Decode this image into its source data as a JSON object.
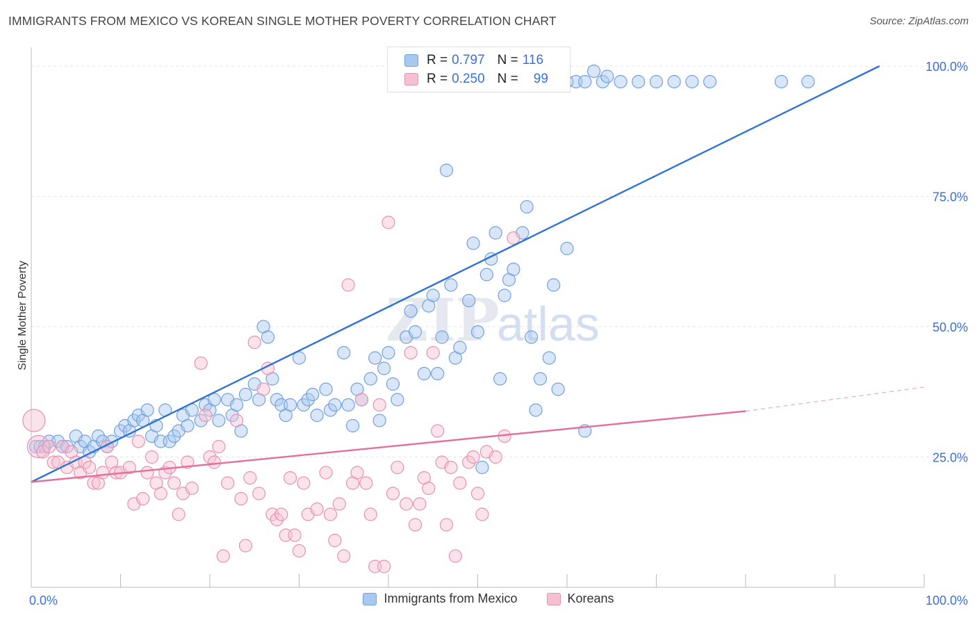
{
  "title": "IMMIGRANTS FROM MEXICO VS KOREAN SINGLE MOTHER POVERTY CORRELATION CHART",
  "source": "Source: ZipAtlas.com",
  "watermark": {
    "zip": "ZIP",
    "atlas": "atlas"
  },
  "legend_top": {
    "rows": [
      {
        "r_label": "R =",
        "r_value": "0.797",
        "n_label": "N =",
        "n_value": "116",
        "color": "#a9c8f0",
        "border": "#6fa0e0"
      },
      {
        "r_label": "R =",
        "r_value": "0.250",
        "n_label": "N =",
        "n_value": "99",
        "color": "#f7c0d2",
        "border": "#e890ae"
      }
    ]
  },
  "chart_data": {
    "type": "scatter",
    "title": "IMMIGRANTS FROM MEXICO VS KOREAN SINGLE MOTHER POVERTY CORRELATION CHART",
    "xlabel": "",
    "ylabel": "Single Mother Poverty",
    "xlim": [
      0,
      100
    ],
    "ylim": [
      0,
      100
    ],
    "x_tick_labels": [
      "0.0%",
      "100.0%"
    ],
    "y_tick_labels": [
      "25.0%",
      "50.0%",
      "75.0%",
      "100.0%"
    ],
    "y_ticks": [
      25,
      50,
      75,
      100
    ],
    "grid": true,
    "legend_position": "bottom",
    "series": [
      {
        "name": "Immigrants from Mexico",
        "color": "#6fa0e0",
        "fill": "#a9c8f0",
        "trend": {
          "x": [
            0,
            95
          ],
          "y": [
            20.2,
            100
          ]
        },
        "trend_color": "#2f72d6",
        "points": [
          [
            0.5,
            27
          ],
          [
            1,
            27
          ],
          [
            1.5,
            27
          ],
          [
            2,
            28
          ],
          [
            3,
            28
          ],
          [
            3.5,
            27
          ],
          [
            4,
            27
          ],
          [
            5,
            29
          ],
          [
            5.5,
            27
          ],
          [
            6,
            28
          ],
          [
            6.5,
            26
          ],
          [
            7,
            27
          ],
          [
            7.5,
            29
          ],
          [
            8,
            28
          ],
          [
            8.5,
            27
          ],
          [
            9,
            28
          ],
          [
            10,
            30
          ],
          [
            10.5,
            31
          ],
          [
            11,
            30
          ],
          [
            11.5,
            32
          ],
          [
            12,
            33
          ],
          [
            12.5,
            32
          ],
          [
            13,
            34
          ],
          [
            13.5,
            29
          ],
          [
            14,
            31
          ],
          [
            14.5,
            28
          ],
          [
            15,
            34
          ],
          [
            15.5,
            28
          ],
          [
            16,
            29
          ],
          [
            16.5,
            30
          ],
          [
            17,
            33
          ],
          [
            17.5,
            31
          ],
          [
            18,
            34
          ],
          [
            19,
            32
          ],
          [
            19.5,
            35
          ],
          [
            20,
            34
          ],
          [
            20.5,
            36
          ],
          [
            21,
            32
          ],
          [
            22,
            36
          ],
          [
            22.5,
            33
          ],
          [
            23,
            35
          ],
          [
            23.5,
            30
          ],
          [
            24,
            37
          ],
          [
            25,
            39
          ],
          [
            25.5,
            36
          ],
          [
            26,
            50
          ],
          [
            26.5,
            48
          ],
          [
            27,
            40
          ],
          [
            27.5,
            36
          ],
          [
            28,
            35
          ],
          [
            28.5,
            33
          ],
          [
            29,
            35
          ],
          [
            30,
            44
          ],
          [
            30.5,
            35
          ],
          [
            31,
            36
          ],
          [
            31.5,
            37
          ],
          [
            32,
            33
          ],
          [
            33,
            38
          ],
          [
            33.5,
            34
          ],
          [
            34,
            35
          ],
          [
            35,
            45
          ],
          [
            35.5,
            35
          ],
          [
            36,
            31
          ],
          [
            36.5,
            38
          ],
          [
            37,
            36
          ],
          [
            38,
            40
          ],
          [
            38.5,
            44
          ],
          [
            39,
            32
          ],
          [
            39.5,
            42
          ],
          [
            40,
            45
          ],
          [
            40.5,
            39
          ],
          [
            41,
            36
          ],
          [
            42,
            48
          ],
          [
            42.5,
            53
          ],
          [
            43,
            49
          ],
          [
            44,
            41
          ],
          [
            44.5,
            54
          ],
          [
            45,
            56
          ],
          [
            45.5,
            41
          ],
          [
            46,
            48
          ],
          [
            46.5,
            80
          ],
          [
            47,
            58
          ],
          [
            47.5,
            44
          ],
          [
            48,
            46
          ],
          [
            49,
            55
          ],
          [
            49.5,
            66
          ],
          [
            50,
            49
          ],
          [
            50.5,
            23
          ],
          [
            51,
            60
          ],
          [
            51.5,
            63
          ],
          [
            52,
            68
          ],
          [
            52.5,
            40
          ],
          [
            53,
            56
          ],
          [
            53.5,
            59
          ],
          [
            54,
            61
          ],
          [
            55,
            68
          ],
          [
            55.5,
            73
          ],
          [
            56,
            48
          ],
          [
            56.5,
            34
          ],
          [
            57,
            40
          ],
          [
            58,
            44
          ],
          [
            58.5,
            58
          ],
          [
            59,
            38
          ],
          [
            60,
            97
          ],
          [
            61,
            97
          ],
          [
            62,
            97
          ],
          [
            64,
            97
          ],
          [
            66,
            97
          ],
          [
            68,
            97
          ],
          [
            70,
            97
          ],
          [
            72,
            97
          ],
          [
            74,
            97
          ],
          [
            76,
            97
          ],
          [
            84,
            97
          ],
          [
            87,
            97
          ],
          [
            60,
            65
          ],
          [
            62,
            30
          ],
          [
            63,
            99
          ],
          [
            64.5,
            98
          ]
        ]
      },
      {
        "name": "Koreans",
        "color": "#e890ae",
        "fill": "#f7c0d2",
        "trend": {
          "x": [
            0,
            80
          ],
          "y": [
            20.2,
            33.8
          ]
        },
        "trend_dashed_to": {
          "x": 100,
          "y": 38.4
        },
        "trend_color": "#e2709a",
        "points": [
          [
            0.3,
            32
          ],
          [
            0.8,
            27
          ],
          [
            1.3,
            26
          ],
          [
            2,
            27
          ],
          [
            2.5,
            24
          ],
          [
            3,
            24
          ],
          [
            3.5,
            27
          ],
          [
            4,
            23
          ],
          [
            4.5,
            26
          ],
          [
            5,
            24
          ],
          [
            5.5,
            22
          ],
          [
            6,
            24
          ],
          [
            6.5,
            23
          ],
          [
            7,
            20
          ],
          [
            7.5,
            20
          ],
          [
            8,
            22
          ],
          [
            8.5,
            27
          ],
          [
            9,
            24
          ],
          [
            9.5,
            22
          ],
          [
            10,
            22
          ],
          [
            11,
            23
          ],
          [
            11.5,
            16
          ],
          [
            12,
            28
          ],
          [
            12.5,
            17
          ],
          [
            13,
            22
          ],
          [
            13.5,
            25
          ],
          [
            14,
            20
          ],
          [
            14.5,
            18
          ],
          [
            15,
            22
          ],
          [
            15.5,
            23
          ],
          [
            16,
            20
          ],
          [
            16.5,
            14
          ],
          [
            17,
            18
          ],
          [
            17.5,
            24
          ],
          [
            18,
            19
          ],
          [
            19,
            43
          ],
          [
            19.5,
            33
          ],
          [
            20,
            25
          ],
          [
            20.5,
            24
          ],
          [
            21,
            27
          ],
          [
            21.5,
            6
          ],
          [
            22,
            20
          ],
          [
            23,
            32
          ],
          [
            23.5,
            17
          ],
          [
            24,
            8
          ],
          [
            24.5,
            21
          ],
          [
            25,
            47
          ],
          [
            25.5,
            18
          ],
          [
            26,
            38
          ],
          [
            26.5,
            42
          ],
          [
            27,
            14
          ],
          [
            27.5,
            13
          ],
          [
            28,
            14
          ],
          [
            28.5,
            10
          ],
          [
            29,
            21
          ],
          [
            29.5,
            10
          ],
          [
            30,
            7
          ],
          [
            30.5,
            20
          ],
          [
            31,
            14
          ],
          [
            32,
            15
          ],
          [
            33,
            22
          ],
          [
            33.5,
            14
          ],
          [
            34,
            9
          ],
          [
            34.5,
            16
          ],
          [
            35,
            6
          ],
          [
            35.5,
            58
          ],
          [
            36,
            20
          ],
          [
            36.5,
            22
          ],
          [
            37,
            36
          ],
          [
            37.5,
            20
          ],
          [
            38,
            14
          ],
          [
            38.5,
            4
          ],
          [
            39,
            35
          ],
          [
            39.5,
            4
          ],
          [
            40,
            70
          ],
          [
            40.5,
            18
          ],
          [
            41,
            23
          ],
          [
            42,
            16
          ],
          [
            42.5,
            45
          ],
          [
            43,
            12
          ],
          [
            43.5,
            16
          ],
          [
            44,
            21
          ],
          [
            44.5,
            19
          ],
          [
            45,
            45
          ],
          [
            45.5,
            30
          ],
          [
            46,
            24
          ],
          [
            46.5,
            12
          ],
          [
            47,
            23
          ],
          [
            47.5,
            6
          ],
          [
            48,
            20
          ],
          [
            49,
            24
          ],
          [
            49.5,
            25
          ],
          [
            50,
            18
          ],
          [
            50.5,
            14
          ],
          [
            51,
            26
          ],
          [
            52,
            25
          ],
          [
            53,
            29
          ],
          [
            54,
            67
          ]
        ]
      }
    ]
  },
  "bottom_legend": [
    {
      "label": "Immigrants from Mexico",
      "color": "#a9c8f0",
      "border": "#6fa0e0"
    },
    {
      "label": "Koreans",
      "color": "#f7c0d2",
      "border": "#e890ae"
    }
  ]
}
